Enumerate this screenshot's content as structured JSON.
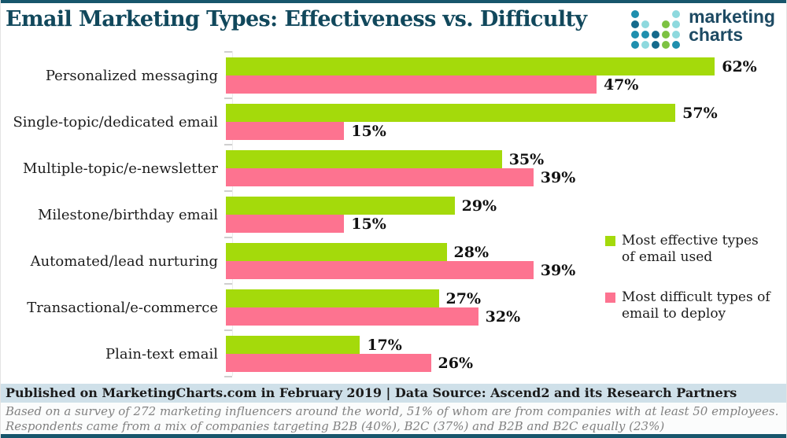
{
  "title": "Email Marketing Types: Effectiveness vs. Difficulty",
  "logo": {
    "text_line1": "marketing",
    "text_line2": "charts",
    "text_color": "#1d4a63",
    "dot_grid": [
      [
        "t",
        "",
        "",
        "",
        "l"
      ],
      [
        "d",
        "l",
        "",
        "g",
        "l"
      ],
      [
        "t",
        "t",
        "d",
        "g",
        "l"
      ],
      [
        "t",
        "l",
        "d",
        "g",
        "t"
      ]
    ],
    "dot_palette": {
      "t": "#1f8fae",
      "l": "#8ed9de",
      "g": "#7dc242",
      "d": "#156a8c"
    }
  },
  "chart_data": {
    "type": "bar",
    "orientation": "horizontal",
    "title": "Email Marketing Types: Effectiveness vs. Difficulty",
    "categories": [
      "Personalized messaging",
      "Single-topic/dedicated email",
      "Multiple-topic/e-newsletter",
      "Milestone/birthday email",
      "Automated/lead nurturing",
      "Transactional/e-commerce",
      "Plain-text email"
    ],
    "series": [
      {
        "name": "Most effective types of email used",
        "color": "#a4da0b",
        "values": [
          62,
          57,
          35,
          29,
          28,
          27,
          17
        ]
      },
      {
        "name": "Most difficult types of email to deploy",
        "color": "#fd7390",
        "values": [
          47,
          15,
          39,
          15,
          39,
          32,
          26
        ]
      }
    ],
    "value_suffix": "%",
    "xlim": [
      0,
      70
    ],
    "grid": false,
    "legend_position": "right-middle"
  },
  "footer": {
    "published": "Published on MarketingCharts.com in February 2019 | Data Source: Ascend2 and its Research Partners",
    "note_line1": "Based on a survey of 272 marketing influencers around the world, 51% of whom are from companies with at least 50 employees.",
    "note_line2": "Respondents came from a mix of companies targeting B2B (40%), B2C (37%) and B2B and B2C equally (23%)"
  },
  "colors": {
    "accent_teal": "#17566c",
    "title_color": "#11485c",
    "published_band_bg": "#cfe0e9",
    "effective_green": "#a4da0b",
    "difficult_pink": "#fd7390"
  }
}
